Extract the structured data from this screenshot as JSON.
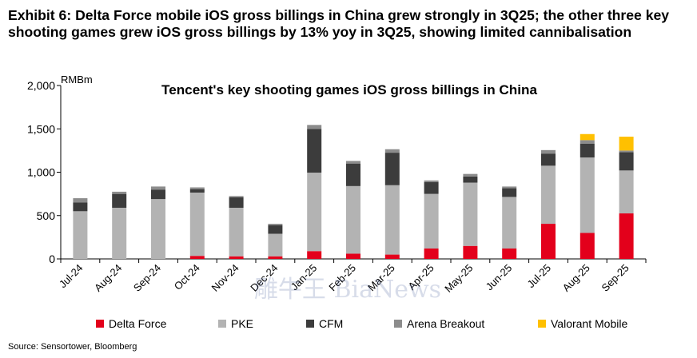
{
  "exhibit_title": "Exhibit 6: Delta Force mobile iOS gross billings in China grew strongly in 3Q25; the other three key shooting games grew iOS gross billings by 13% yoy in 3Q25, showing limited cannibalisation",
  "source": "Source: Sensortower, Bloomberg",
  "watermark": "雕牛王 BiaNews",
  "chart_data": {
    "type": "bar",
    "stacked": true,
    "title": "Tencent's key shooting games iOS gross billings in China",
    "ylabel": "RMBm",
    "ylim": [
      0,
      2000
    ],
    "yticks": [
      0,
      500,
      1000,
      1500,
      2000
    ],
    "ytick_labels": [
      "0",
      "500",
      "1,000",
      "1,500",
      "2,000"
    ],
    "categories": [
      "Jul-24",
      "Aug-24",
      "Sep-24",
      "Oct-24",
      "Nov-24",
      "Dec-24",
      "Jan-25",
      "Feb-25",
      "Mar-25",
      "Apr-25",
      "May-25",
      "Jun-25",
      "Jul-25",
      "Aug-25",
      "Sep-25"
    ],
    "legend_position": "bottom",
    "series": [
      {
        "name": "Delta Force",
        "color": "#e3001b",
        "values": [
          0,
          0,
          0,
          35,
          30,
          30,
          90,
          60,
          50,
          120,
          150,
          120,
          405,
          300,
          525
        ]
      },
      {
        "name": "PKE",
        "color": "#b3b3b3",
        "values": [
          550,
          590,
          690,
          730,
          560,
          260,
          905,
          780,
          800,
          630,
          730,
          595,
          670,
          870,
          495
        ]
      },
      {
        "name": "CFM",
        "color": "#3c3c3c",
        "values": [
          100,
          160,
          110,
          40,
          120,
          100,
          505,
          260,
          375,
          135,
          70,
          100,
          140,
          160,
          210
        ]
      },
      {
        "name": "Arena Breakout",
        "color": "#8c8c8c",
        "values": [
          50,
          25,
          35,
          20,
          15,
          15,
          45,
          30,
          40,
          20,
          30,
          20,
          40,
          40,
          20
        ]
      },
      {
        "name": "Valorant Mobile",
        "color": "#ffc000",
        "values": [
          0,
          0,
          0,
          0,
          0,
          0,
          0,
          0,
          0,
          0,
          0,
          0,
          0,
          70,
          160
        ]
      }
    ]
  }
}
